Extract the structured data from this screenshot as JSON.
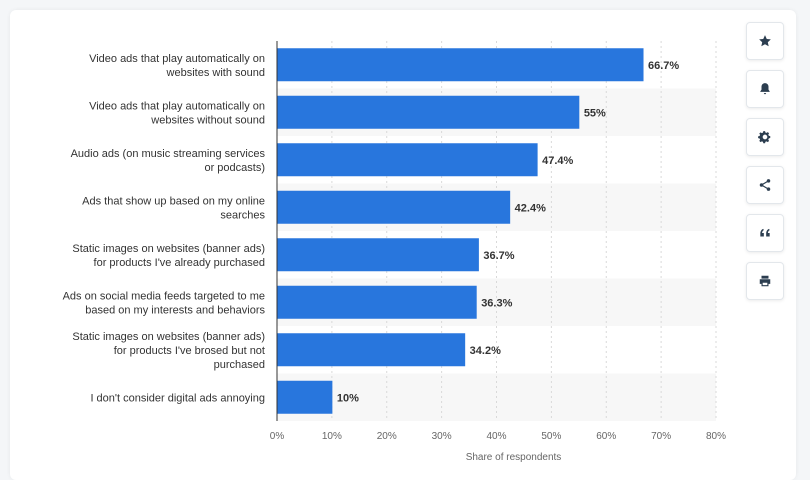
{
  "chart_data": {
    "type": "bar",
    "orientation": "horizontal",
    "categories": [
      [
        "Video ads that play automatically on",
        "websites with sound"
      ],
      [
        "Video ads that play automatically on",
        "websites without sound"
      ],
      [
        "Audio ads (on music streaming services",
        "or podcasts)"
      ],
      [
        "Ads that show up based on my online",
        "searches"
      ],
      [
        "Static images on websites (banner ads)",
        "for products I've already purchased"
      ],
      [
        "Ads on social media feeds targeted to me",
        "based on my interests and behaviors"
      ],
      [
        "Static images on websites (banner ads)",
        "for products I've brosed but not",
        "purchased"
      ],
      [
        "I don't consider digital ads annoying"
      ]
    ],
    "values": [
      66.7,
      55,
      47.4,
      42.4,
      36.7,
      36.3,
      34.2,
      10
    ],
    "value_labels": [
      "66.7%",
      "55%",
      "47.4%",
      "42.4%",
      "36.7%",
      "36.3%",
      "34.2%",
      "10%"
    ],
    "xlim": [
      0,
      80
    ],
    "xticks": [
      0,
      10,
      20,
      30,
      40,
      50,
      60,
      70,
      80
    ],
    "xtick_labels": [
      "0%",
      "10%",
      "20%",
      "30%",
      "40%",
      "50%",
      "60%",
      "70%",
      "80%"
    ],
    "xlabel": "Share of respondents",
    "ylabel": "",
    "title": "",
    "bar_color": "#2876dd",
    "grid": true
  },
  "toolbar": {
    "icons": [
      "star-icon",
      "bell-icon",
      "gear-icon",
      "share-icon",
      "quote-icon",
      "print-icon"
    ]
  }
}
